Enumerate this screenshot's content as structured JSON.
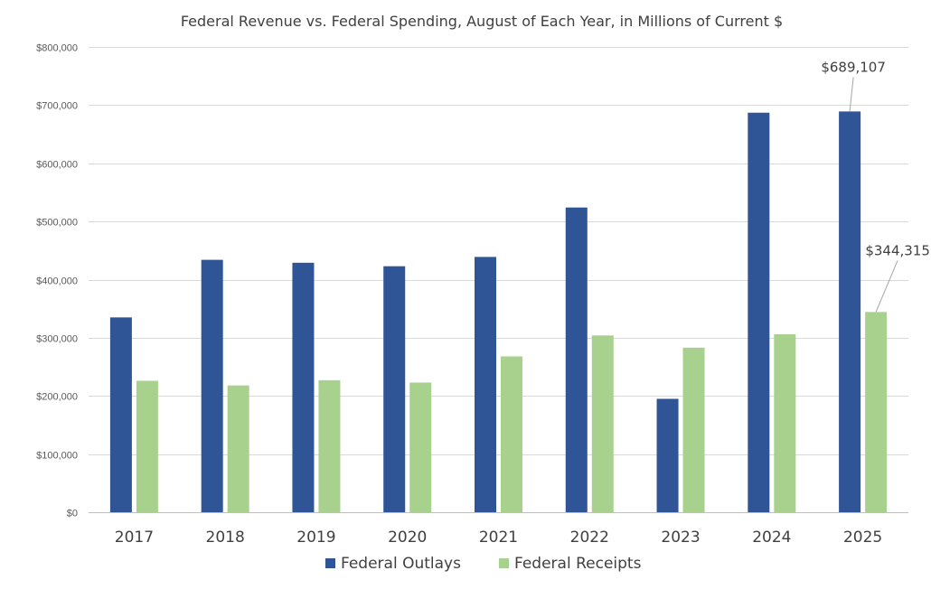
{
  "chart_data": {
    "type": "bar",
    "title": "Federal Revenue vs. Federal Spending, August of Each Year, in Millions of Current $",
    "xlabel": "",
    "ylabel": "",
    "categories": [
      "2017",
      "2018",
      "2019",
      "2020",
      "2021",
      "2022",
      "2023",
      "2024",
      "2025"
    ],
    "series": [
      {
        "name": "Federal Outlays",
        "color": "#2f5597",
        "values": [
          335000,
          434000,
          429000,
          423000,
          439000,
          524000,
          195000,
          687000,
          689107
        ]
      },
      {
        "name": "Federal Receipts",
        "color": "#a9d18e",
        "values": [
          226000,
          218000,
          227000,
          223000,
          268000,
          304000,
          283000,
          306000,
          344315
        ]
      }
    ],
    "ylim": [
      0,
      800000
    ],
    "yticks": [
      0,
      100000,
      200000,
      300000,
      400000,
      500000,
      600000,
      700000,
      800000
    ],
    "ytick_labels": [
      "$0",
      "$100,000",
      "$200,000",
      "$300,000",
      "$400,000",
      "$500,000",
      "$600,000",
      "$700,000",
      "$800,000"
    ],
    "grid": true,
    "legend_position": "bottom",
    "annotations": [
      {
        "series": 0,
        "category": "2025",
        "text": "$689,107"
      },
      {
        "series": 1,
        "category": "2025",
        "text": "$344,315"
      }
    ]
  }
}
